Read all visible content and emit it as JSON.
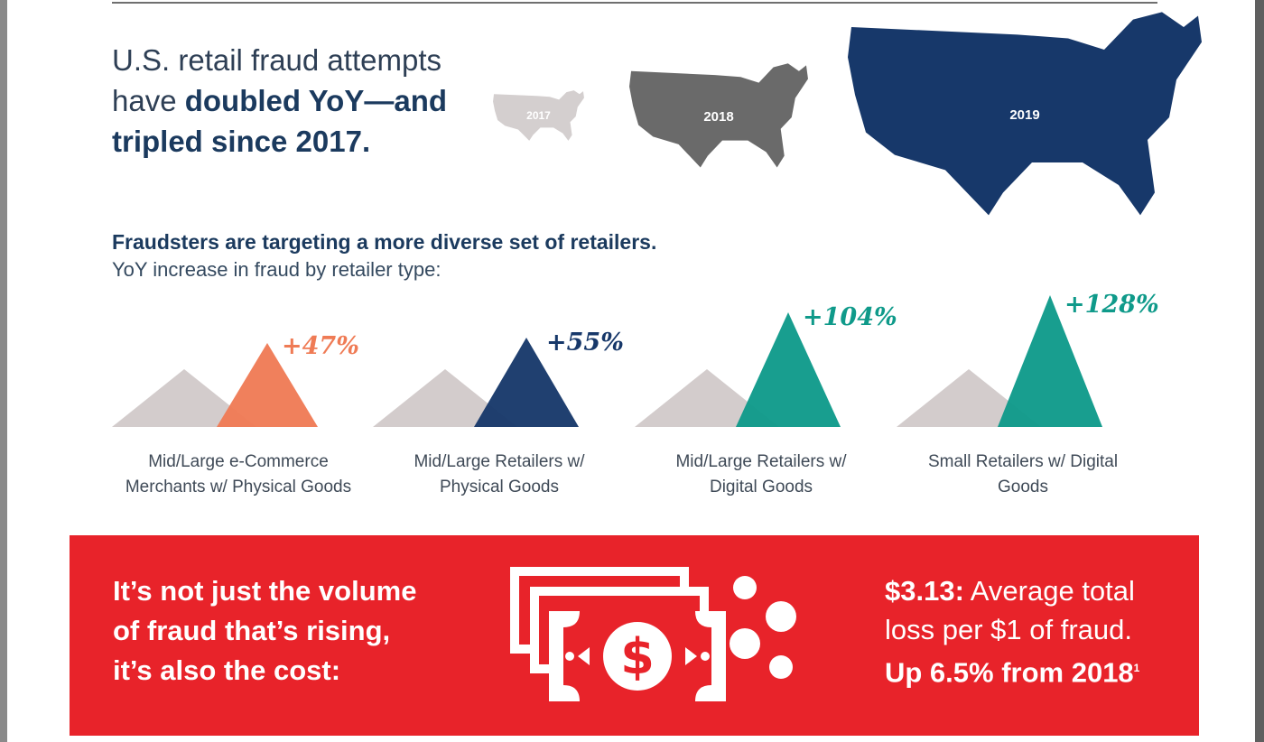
{
  "headline": {
    "line1": "U.S. retail fraud attempts",
    "line2_prefix": "have ",
    "line2_bold": "doubled YoY—and",
    "line3_bold": "tripled since 2017."
  },
  "maps": [
    {
      "year": "2017",
      "color": "#d4cfcf"
    },
    {
      "year": "2018",
      "color": "#6a6a6a"
    },
    {
      "year": "2019",
      "color": "#17386a"
    }
  ],
  "section": {
    "title": "Fraudsters are targeting a more diverse set of retailers.",
    "caption": "YoY increase in fraud by retailer type:"
  },
  "retailer_types": [
    {
      "pct": "+47%",
      "label_line1": "Mid/Large  e-Commerce",
      "label_line2": "Merchants w/ Physical Goods",
      "color": "#ef7b55",
      "value": 47
    },
    {
      "pct": "+55%",
      "label_line1": "Mid/Large Retailers w/",
      "label_line2": "Physical Goods",
      "color": "#17386a",
      "value": 55
    },
    {
      "pct": "+104%",
      "label_line1": "Mid/Large Retailers w/",
      "label_line2": "Digital Goods",
      "color": "#0f9a8a",
      "value": 104
    },
    {
      "pct": "+128%",
      "label_line1": "Small Retailers w/ Digital",
      "label_line2": "Goods",
      "color": "#0f9a8a",
      "value": 128
    }
  ],
  "banner": {
    "left_line1": "It’s not just the volume",
    "left_line2": "of fraud that’s rising,",
    "left_line3": "it’s also the cost:",
    "icon": "dollar-bills-icon",
    "stat_value": "$3.13:",
    "stat_text_1": " Average total",
    "stat_text_2": "loss per $1 of fraud.",
    "stat_text_3": "Up 6.5% from 2018",
    "footnote": "1",
    "color": "#e8232a"
  },
  "colors": {
    "navy": "#1b3a5e",
    "grey_peak": "#d3cccc",
    "red": "#e8232a"
  }
}
